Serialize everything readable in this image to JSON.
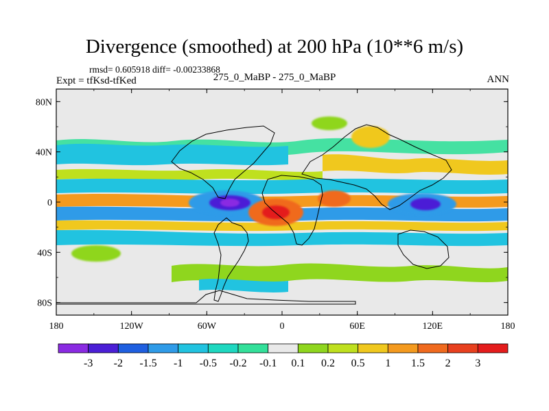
{
  "header": {
    "title": "Divergence (smoothed) at 200 hPa (10**6 m/s)",
    "stats": "rmsd= 0.605918 diff= -0.00233868",
    "experiment": "Expt = tfKsd-tfKed",
    "case": "275_0_MaBP - 275_0_MaBP",
    "season": "ANN"
  },
  "chart_data": {
    "type": "heatmap",
    "title": "Divergence (smoothed) at 200 hPa (10**6 m/s)",
    "xlabel": "",
    "ylabel": "",
    "xlim": [
      -180,
      180
    ],
    "ylim": [
      -90,
      90
    ],
    "x_ticks": [
      {
        "value": -180,
        "label": "180"
      },
      {
        "value": -120,
        "label": "120W"
      },
      {
        "value": -60,
        "label": "60W"
      },
      {
        "value": 0,
        "label": "0"
      },
      {
        "value": 60,
        "label": "60E"
      },
      {
        "value": 120,
        "label": "120E"
      },
      {
        "value": 180,
        "label": "180"
      }
    ],
    "y_ticks": [
      {
        "value": 80,
        "label": "80N"
      },
      {
        "value": 40,
        "label": "40N"
      },
      {
        "value": 0,
        "label": "0"
      },
      {
        "value": -40,
        "label": "40S"
      },
      {
        "value": -80,
        "label": "80S"
      }
    ],
    "colorbar": {
      "labels": [
        "-3",
        "-2",
        "-1.5",
        "-1",
        "-0.5",
        "-0.2",
        "-0.1",
        "0.1",
        "0.2",
        "0.5",
        "1",
        "1.5",
        "2",
        "3"
      ],
      "colors": [
        "#8a2be2",
        "#4b1fd6",
        "#1f5fe0",
        "#2f9be8",
        "#21c3e0",
        "#1ed8c0",
        "#33e09a",
        "#e9e9e9",
        "#8fd61e",
        "#bfe01e",
        "#f0c81e",
        "#f49a1e",
        "#f06a1e",
        "#e8401e",
        "#e41c1c"
      ]
    },
    "features": [
      {
        "name": "equatorial convergence center (Atlantic)",
        "lon": -40,
        "lat": 0,
        "value": -3
      },
      {
        "name": "equatorial convergence center (Indian Ocean)",
        "lon": 115,
        "lat": 0,
        "value": -3
      },
      {
        "name": "divergence maximum (Africa)",
        "lon": -10,
        "lat": -8,
        "value": 2
      },
      {
        "name": "divergence maximum (Arabia)",
        "lon": 42,
        "lat": 4,
        "value": 1.5
      },
      {
        "name": "equatorial divergence band",
        "lat": 0,
        "value": 1
      },
      {
        "name": "off-equatorial convergence bands",
        "lat": 10,
        "value": -1
      },
      {
        "name": "mid-latitude divergence band (NH)",
        "lat": 30,
        "value": 0.5
      },
      {
        "name": "mid-latitude convergence band (NH)",
        "lat": 40,
        "value": -0.5
      },
      {
        "name": "southern hemisphere divergence band",
        "lat": -38,
        "value": 0.2
      }
    ]
  }
}
